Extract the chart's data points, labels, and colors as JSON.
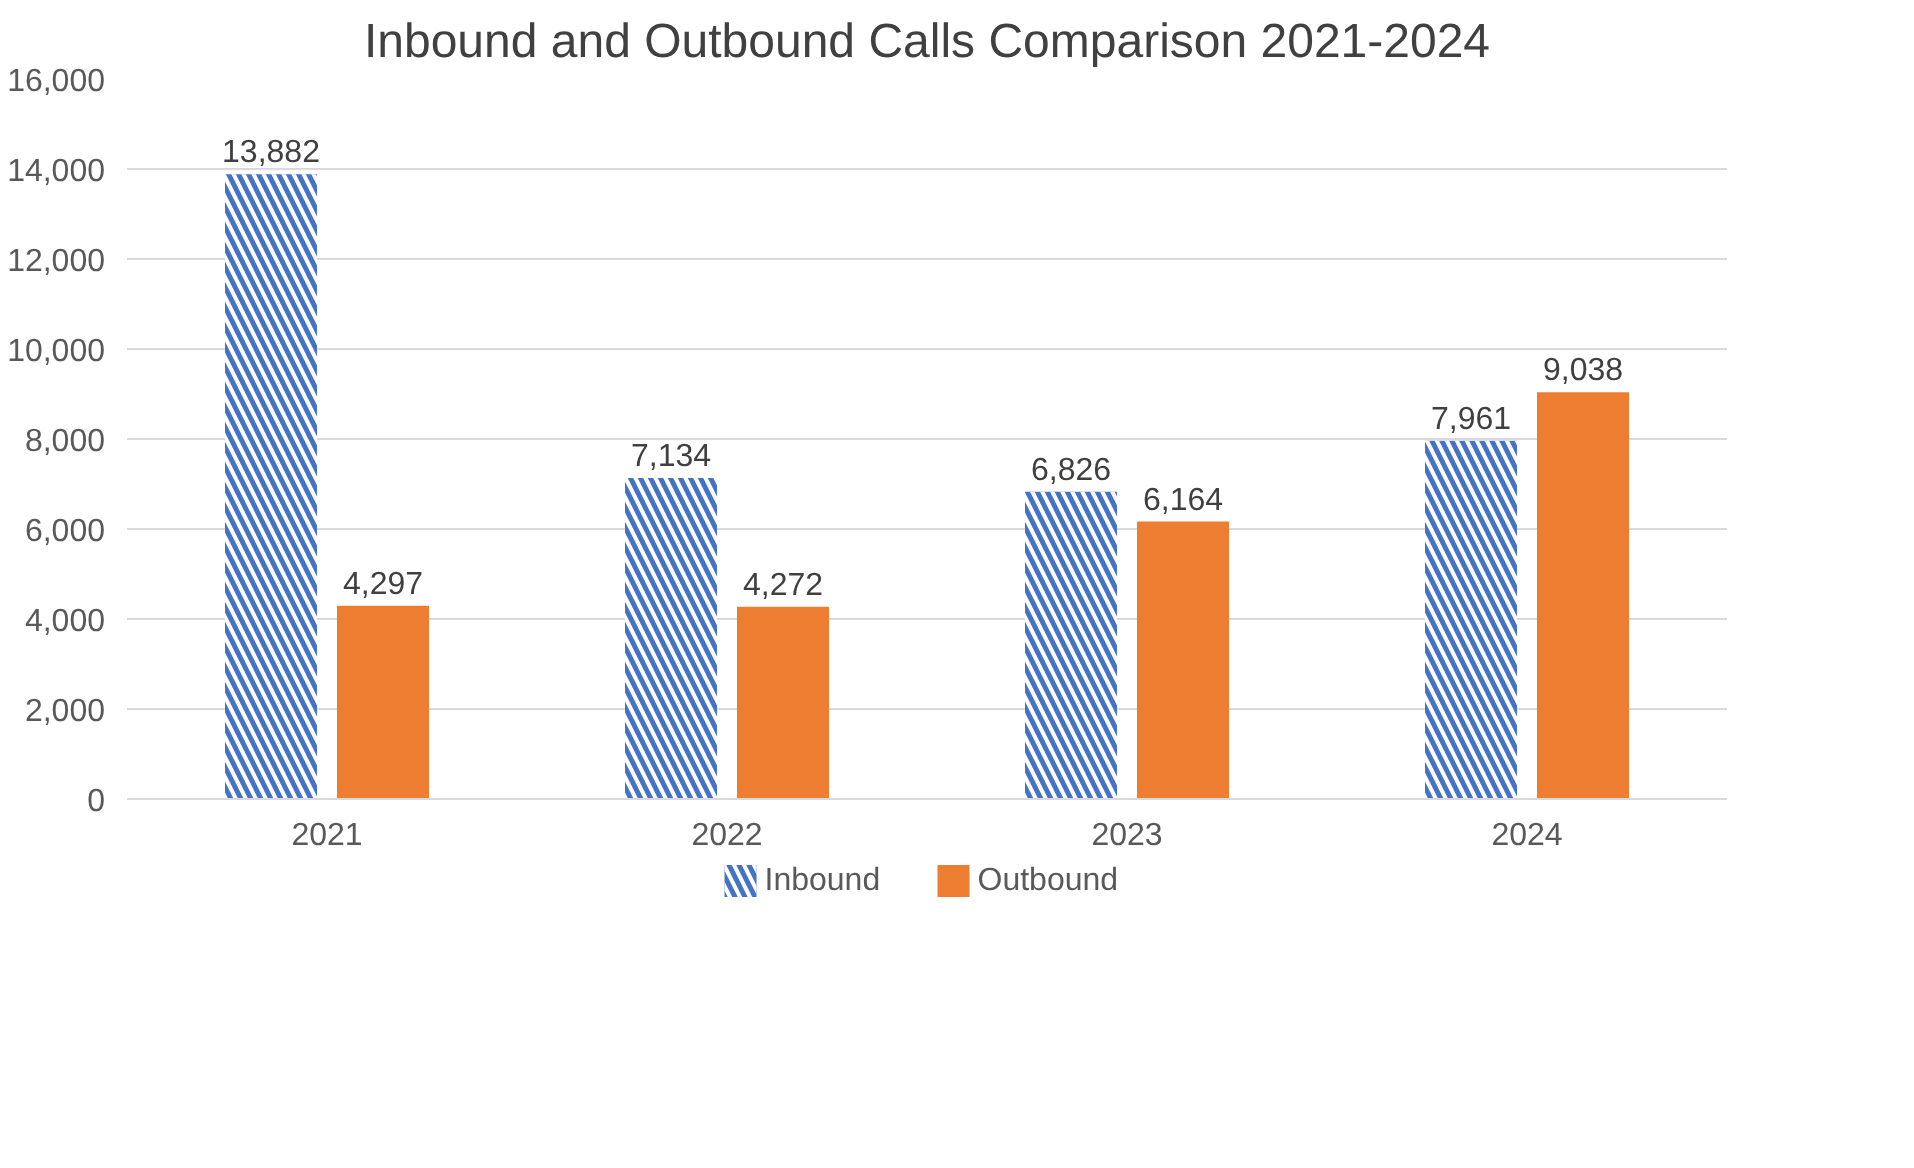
{
  "chart_data": {
    "type": "bar",
    "title": "Inbound and Outbound Calls Comparison 2021-2024",
    "categories": [
      "2021",
      "2022",
      "2023",
      "2024"
    ],
    "series": [
      {
        "name": "Inbound",
        "color": "#4472c4",
        "values": [
          13882,
          7134,
          6826,
          7961
        ],
        "value_labels": [
          "13,882",
          "7,134",
          "6,826",
          "7,961"
        ]
      },
      {
        "name": "Outbound",
        "color": "#ed7d31",
        "values": [
          4297,
          4272,
          6164,
          9038
        ],
        "value_labels": [
          "4,297",
          "4,272",
          "6,164",
          "9,038"
        ]
      }
    ],
    "ylim": [
      0,
      16000
    ],
    "yticks": [
      {
        "value": 0,
        "label": "0"
      },
      {
        "value": 2000,
        "label": "2,000"
      },
      {
        "value": 4000,
        "label": "4,000"
      },
      {
        "value": 6000,
        "label": "6,000"
      },
      {
        "value": 8000,
        "label": "8,000"
      },
      {
        "value": 10000,
        "label": "10,000"
      },
      {
        "value": 12000,
        "label": "12,000"
      },
      {
        "value": 14000,
        "label": "14,000"
      },
      {
        "value": 16000,
        "label": "16,000"
      }
    ],
    "grid": "y",
    "legend": "bottom"
  }
}
